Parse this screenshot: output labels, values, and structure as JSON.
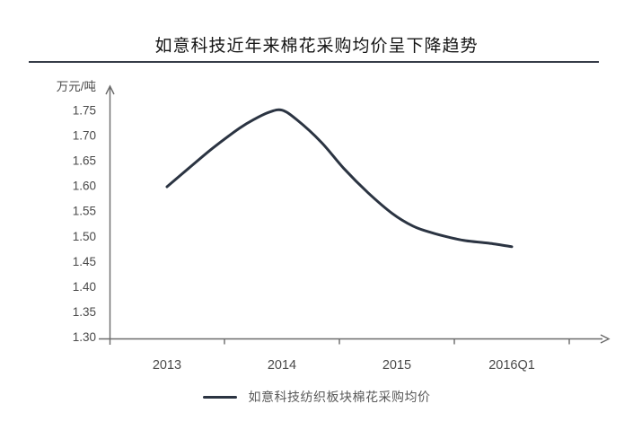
{
  "title": "如意科技近年来棉花采购均价呈下降趋势",
  "unit_label": "万元/吨",
  "legend": {
    "label": "如意科技纺织板块棉花采购均价"
  },
  "colors": {
    "curve": "#2b3442",
    "axis": "#6a6a6a",
    "tick_label": "#4a4a4a",
    "title": "#141414",
    "rule": "#363c48",
    "legend_text": "#595959"
  },
  "chart_data": {
    "type": "line",
    "smoothed": true,
    "title": "如意科技近年来棉花采购均价呈下降趋势",
    "ylabel": "万元/吨",
    "xlabel": "",
    "categories": [
      "2013",
      "2014",
      "2015",
      "2016Q1"
    ],
    "series": [
      {
        "name": "如意科技纺织板块棉花采购均价",
        "values": [
          1.6,
          1.75,
          1.5,
          1.48
        ]
      }
    ],
    "yticks": [
      "1.75",
      "1.70",
      "1.65",
      "1.60",
      "1.55",
      "1.50",
      "1.45",
      "1.40",
      "1.35",
      "1.30"
    ],
    "ylim": [
      1.3,
      1.75
    ],
    "grid": false,
    "legend_position": "bottom",
    "curve_trace": [
      [
        0.0,
        1.598
      ],
      [
        0.19,
        1.635
      ],
      [
        0.4,
        1.675
      ],
      [
        0.63,
        1.714
      ],
      [
        0.76,
        1.732
      ],
      [
        0.89,
        1.746
      ],
      [
        1.0,
        1.75
      ],
      [
        1.13,
        1.731
      ],
      [
        1.34,
        1.687
      ],
      [
        1.54,
        1.634
      ],
      [
        1.75,
        1.586
      ],
      [
        1.96,
        1.545
      ],
      [
        2.14,
        1.52
      ],
      [
        2.3,
        1.507
      ],
      [
        2.45,
        1.498
      ],
      [
        2.6,
        1.491
      ],
      [
        2.8,
        1.486
      ],
      [
        3.0,
        1.479
      ]
    ]
  }
}
